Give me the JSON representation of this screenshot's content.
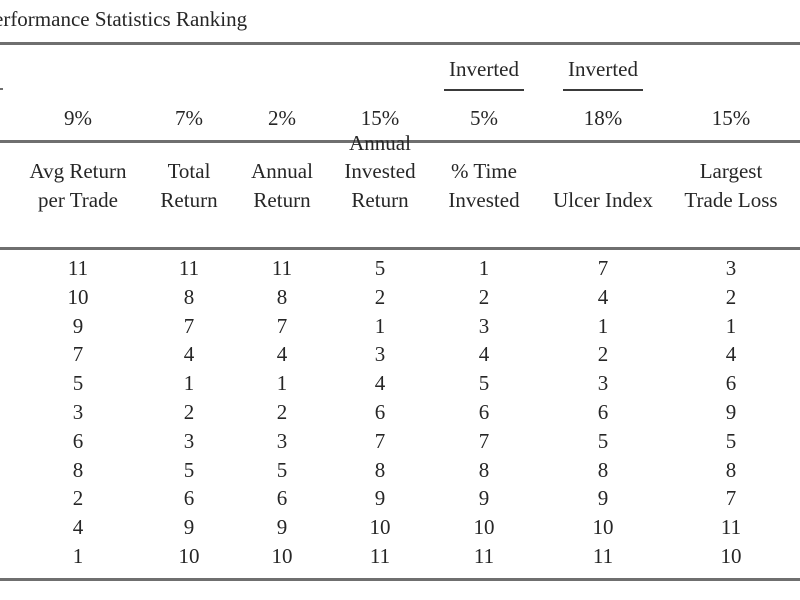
{
  "title": "erformance Statistics Ranking",
  "group_headers": [
    {
      "col": 4,
      "label": "Inverted"
    },
    {
      "col": 5,
      "label": "Inverted"
    }
  ],
  "weights": [
    "9%",
    "7%",
    "2%",
    "15%",
    "5%",
    "18%",
    "15%"
  ],
  "columns": [
    [
      "Avg Return",
      "per Trade"
    ],
    [
      "Total",
      "Return"
    ],
    [
      "Annual",
      "Return"
    ],
    [
      "Annual",
      "Invested",
      "Return"
    ],
    [
      "% Time",
      "Invested"
    ],
    [
      "Ulcer Index"
    ],
    [
      "Largest",
      "Trade Loss"
    ]
  ],
  "rows": [
    [
      "11",
      "11",
      "11",
      "5",
      "1",
      "7",
      "3"
    ],
    [
      "10",
      "8",
      "8",
      "2",
      "2",
      "4",
      "2"
    ],
    [
      "9",
      "7",
      "7",
      "1",
      "3",
      "1",
      "1"
    ],
    [
      "7",
      "4",
      "4",
      "3",
      "4",
      "2",
      "4"
    ],
    [
      "5",
      "1",
      "1",
      "4",
      "5",
      "3",
      "6"
    ],
    [
      "3",
      "2",
      "2",
      "6",
      "6",
      "6",
      "9"
    ],
    [
      "6",
      "3",
      "3",
      "7",
      "7",
      "5",
      "5"
    ],
    [
      "8",
      "5",
      "5",
      "8",
      "8",
      "8",
      "8"
    ],
    [
      "2",
      "6",
      "6",
      "9",
      "9",
      "9",
      "7"
    ],
    [
      "4",
      "9",
      "9",
      "10",
      "10",
      "10",
      "11"
    ],
    [
      "1",
      "10",
      "10",
      "11",
      "11",
      "11",
      "10"
    ]
  ]
}
